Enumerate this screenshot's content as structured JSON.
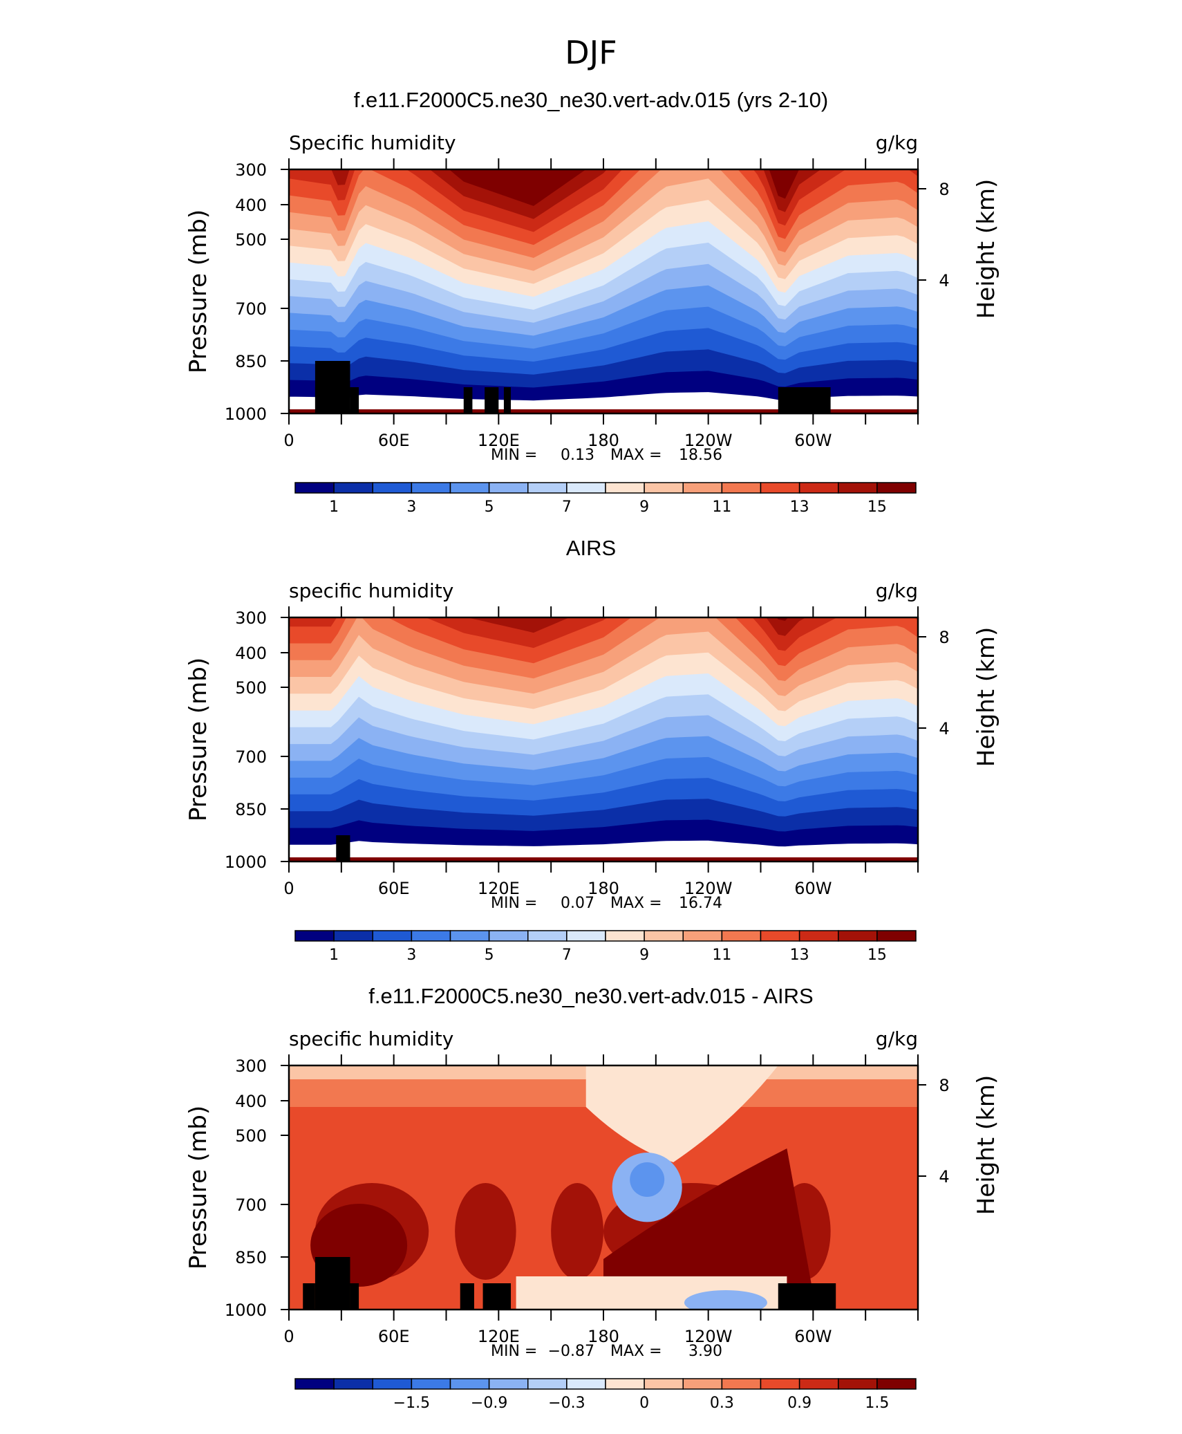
{
  "figure": {
    "title": "DJF",
    "ticks_x": [
      "0",
      "60E",
      "120E",
      "180",
      "120W",
      "60W"
    ],
    "ticks_p": [
      "300",
      "400",
      "500",
      "700",
      "850",
      "1000"
    ],
    "ticks_h": [
      "8",
      "4"
    ],
    "ylabel_left": "Pressure (mb)",
    "ylabel_right": "Height (km)",
    "min_label": "MIN =",
    "max_label": "MAX ="
  },
  "colors": {
    "palette": [
      "#000080",
      "#0b2fa8",
      "#1f5ad4",
      "#3c7ae6",
      "#5c94ee",
      "#8bb2f3",
      "#b4cff7",
      "#dae9fb",
      "#fde4d1",
      "#fbc5a6",
      "#f7a07a",
      "#f27850",
      "#e84a2a",
      "#cc2a16",
      "#a31208",
      "#7f0000"
    ]
  },
  "chart_data": [
    {
      "type": "heatmap",
      "title": "f.e11.F2000C5.ne30_ne30.vert-adv.015 (yrs 2-10)",
      "left_label": "Specific humidity",
      "units": "g/kg",
      "min": "0.13",
      "max": "18.56",
      "colorbar_ticks": [
        "1",
        "3",
        "5",
        "7",
        "9",
        "11",
        "13",
        "15"
      ],
      "colorbar_levels": [
        0,
        1,
        2,
        3,
        4,
        5,
        6,
        7,
        8,
        9,
        10,
        11,
        12,
        13,
        14,
        15,
        16
      ],
      "longitude_range": [
        0,
        360
      ],
      "pressure_range_mb": [
        300,
        1000
      ],
      "height_ticks_km": [
        8,
        4
      ],
      "terrain_mask": [
        [
          15,
          35,
          850
        ],
        [
          35,
          40,
          925
        ],
        [
          15,
          25,
          925
        ],
        [
          100,
          105,
          925
        ],
        [
          112,
          120,
          925
        ],
        [
          123,
          127,
          925
        ],
        [
          280,
          310,
          925
        ]
      ],
      "profile": {
        "longitude": [
          0,
          25,
          30,
          42,
          70,
          100,
          140,
          180,
          215,
          240,
          270,
          282,
          292,
          320,
          350,
          360
        ],
        "t": [
          0.55,
          0.52,
          0.4,
          0.7,
          0.58,
          0.4,
          0.3,
          0.5,
          0.8,
          0.85,
          0.55,
          0.3,
          0.45,
          0.6,
          0.62,
          0.56
        ]
      }
    },
    {
      "type": "heatmap",
      "title": "AIRS",
      "left_label": "specific humidity",
      "units": "g/kg",
      "min": "0.07",
      "max": "16.74",
      "colorbar_ticks": [
        "1",
        "3",
        "5",
        "7",
        "9",
        "11",
        "13",
        "15"
      ],
      "colorbar_levels": [
        0,
        1,
        2,
        3,
        4,
        5,
        6,
        7,
        8,
        9,
        10,
        11,
        12,
        13,
        14,
        15,
        16
      ],
      "longitude_range": [
        0,
        360
      ],
      "pressure_range_mb": [
        300,
        1000
      ],
      "height_ticks_km": [
        8,
        4
      ],
      "terrain_mask": [
        [
          27,
          35,
          925
        ]
      ],
      "profile": {
        "longitude": [
          0,
          25,
          40,
          48,
          70,
          100,
          140,
          180,
          215,
          240,
          270,
          282,
          292,
          320,
          350,
          360
        ],
        "t": [
          0.55,
          0.55,
          0.8,
          0.72,
          0.62,
          0.52,
          0.45,
          0.58,
          0.8,
          0.82,
          0.55,
          0.42,
          0.5,
          0.62,
          0.64,
          0.58
        ]
      }
    },
    {
      "type": "heatmap",
      "title": "f.e11.F2000C5.ne30_ne30.vert-adv.015 - AIRS",
      "left_label": "specific humidity",
      "units": "g/kg",
      "min": "−0.87",
      "max": "3.90",
      "colorbar_ticks": [
        "−1.5",
        "−0.9",
        "−0.3",
        "0",
        "0.3",
        "0.9",
        "1.5"
      ],
      "colorbar_levels": [
        -2.4,
        -2.1,
        -1.8,
        -1.5,
        -1.2,
        -0.9,
        -0.6,
        -0.3,
        0,
        0.3,
        0.6,
        0.9,
        1.2,
        1.5,
        1.8,
        2.1,
        2.4
      ],
      "longitude_range": [
        0,
        360
      ],
      "pressure_range_mb": [
        300,
        1000
      ],
      "height_ticks_km": [
        8,
        4
      ],
      "terrain_mask": [
        [
          15,
          35,
          850
        ],
        [
          35,
          40,
          925
        ],
        [
          8,
          15,
          925
        ],
        [
          98,
          106,
          925
        ],
        [
          111,
          127,
          925
        ],
        [
          280,
          313,
          925
        ]
      ],
      "regions": {
        "positive_core_lon": [
          [
            15,
            80
          ],
          [
            95,
            130
          ],
          [
            150,
            180
          ],
          [
            180,
            280
          ],
          [
            280,
            310
          ]
        ],
        "negative_blob_lon": [
          185,
          225
        ],
        "negative_blob_mb": [
          550,
          750
        ]
      }
    }
  ]
}
